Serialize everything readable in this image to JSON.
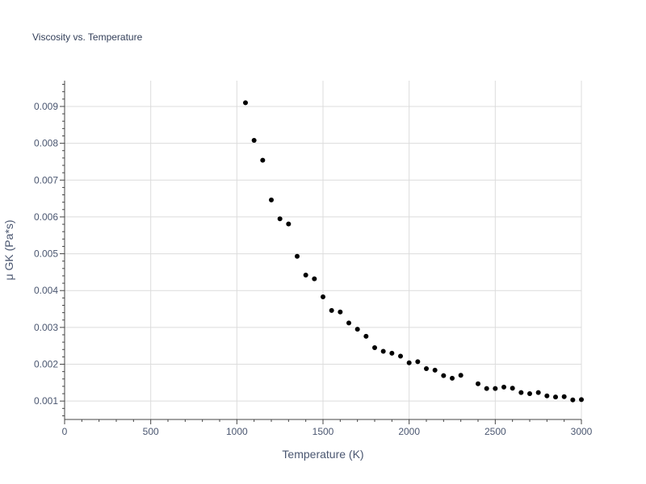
{
  "chart_data": {
    "type": "scatter",
    "title": "Viscosity vs. Temperature",
    "xlabel": "Temperature (K)",
    "ylabel": "μ GK (Pa*s)",
    "xlim": [
      0,
      3000
    ],
    "ylim": [
      0.0005,
      0.0097
    ],
    "xticks": [
      0,
      500,
      1000,
      1500,
      2000,
      2500,
      3000
    ],
    "xtick_labels": [
      "0",
      "500",
      "1000",
      "1500",
      "2000",
      "2500",
      "3000"
    ],
    "yticks": [
      0.001,
      0.002,
      0.003,
      0.004,
      0.005,
      0.006,
      0.007,
      0.008,
      0.009
    ],
    "ytick_labels": [
      "0.001",
      "0.002",
      "0.003",
      "0.004",
      "0.005",
      "0.006",
      "0.007",
      "0.008",
      "0.009"
    ],
    "grid": true,
    "marker_color": "#000000",
    "series": [
      {
        "name": "μ GK",
        "x": [
          1050,
          1100,
          1150,
          1200,
          1250,
          1300,
          1350,
          1400,
          1450,
          1500,
          1550,
          1600,
          1650,
          1700,
          1750,
          1800,
          1850,
          1900,
          1950,
          2000,
          2050,
          2100,
          2150,
          2200,
          2250,
          2300,
          2400,
          2450,
          2500,
          2550,
          2600,
          2650,
          2700,
          2750,
          2800,
          2850,
          2900,
          2950,
          3000
        ],
        "y": [
          0.0091,
          0.00808,
          0.00754,
          0.00646,
          0.00595,
          0.00581,
          0.00493,
          0.00442,
          0.00432,
          0.00383,
          0.00346,
          0.00342,
          0.00312,
          0.00295,
          0.00276,
          0.00245,
          0.00235,
          0.0023,
          0.00222,
          0.00204,
          0.00207,
          0.00188,
          0.00184,
          0.00169,
          0.00162,
          0.0017,
          0.00147,
          0.00134,
          0.00134,
          0.00138,
          0.00135,
          0.00123,
          0.0012,
          0.00123,
          0.00114,
          0.00111,
          0.00112,
          0.00103,
          0.00104
        ]
      }
    ]
  }
}
